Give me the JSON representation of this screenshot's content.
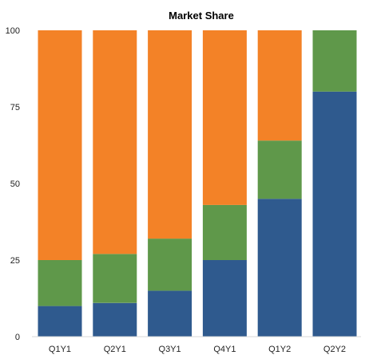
{
  "chart_data": {
    "type": "bar",
    "stacked": true,
    "title": "Market Share",
    "xlabel": "",
    "ylabel": "",
    "categories": [
      "Q1Y1",
      "Q2Y1",
      "Q3Y1",
      "Q4Y1",
      "Q1Y2",
      "Q2Y2"
    ],
    "ylim": [
      0,
      100
    ],
    "yticks": [
      "0",
      "25",
      "50",
      "75",
      "100"
    ],
    "grid": false,
    "series": [
      {
        "color": "#2f5a8e",
        "values": [
          10,
          11,
          15,
          25,
          45,
          80
        ]
      },
      {
        "color": "#5f984a",
        "values": [
          15,
          16,
          17,
          18,
          19,
          20
        ]
      },
      {
        "color": "#f38227",
        "values": [
          75,
          73,
          68,
          57,
          36,
          0
        ]
      }
    ]
  }
}
